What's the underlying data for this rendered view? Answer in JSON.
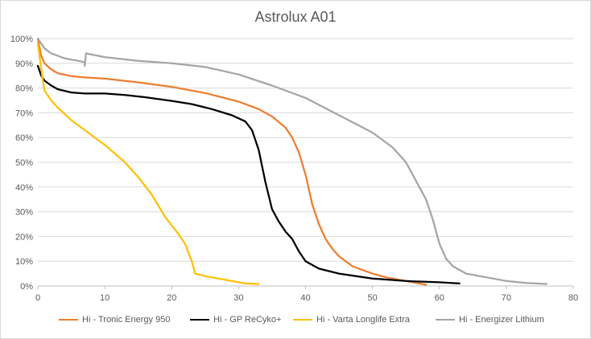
{
  "chart_data": {
    "type": "line",
    "title": "Astrolux A01",
    "xlabel": "",
    "ylabel": "",
    "xlim": [
      0,
      80
    ],
    "ylim": [
      0,
      1
    ],
    "x_ticks": [
      0,
      10,
      20,
      30,
      40,
      50,
      60,
      70,
      80
    ],
    "y_ticks": [
      0,
      0.1,
      0.2,
      0.3,
      0.4,
      0.5,
      0.6,
      0.7,
      0.8,
      0.9,
      1.0
    ],
    "y_tick_labels": [
      "0%",
      "10%",
      "20%",
      "30%",
      "40%",
      "50%",
      "60%",
      "70%",
      "80%",
      "90%",
      "100%"
    ],
    "grid": "horizontal",
    "legend_position": "bottom",
    "series": [
      {
        "name": "Hi - Tronic Energy 950",
        "color": "#ED7D31",
        "points": [
          [
            0,
            1.0
          ],
          [
            0.5,
            0.93
          ],
          [
            1,
            0.9
          ],
          [
            2,
            0.875
          ],
          [
            3,
            0.86
          ],
          [
            5,
            0.848
          ],
          [
            7,
            0.843
          ],
          [
            10,
            0.838
          ],
          [
            15,
            0.823
          ],
          [
            20,
            0.805
          ],
          [
            25,
            0.78
          ],
          [
            30,
            0.745
          ],
          [
            33,
            0.715
          ],
          [
            35,
            0.685
          ],
          [
            37,
            0.64
          ],
          [
            38,
            0.6
          ],
          [
            39,
            0.54
          ],
          [
            40,
            0.45
          ],
          [
            41,
            0.33
          ],
          [
            42,
            0.25
          ],
          [
            43,
            0.19
          ],
          [
            44,
            0.15
          ],
          [
            45,
            0.12
          ],
          [
            47,
            0.08
          ],
          [
            50,
            0.05
          ],
          [
            52,
            0.035
          ],
          [
            55,
            0.02
          ],
          [
            57,
            0.01
          ],
          [
            58,
            0.005
          ]
        ]
      },
      {
        "name": "Hi - GP ReCyko+",
        "color": "#000000",
        "points": [
          [
            0,
            0.89
          ],
          [
            0.5,
            0.85
          ],
          [
            1,
            0.83
          ],
          [
            2,
            0.81
          ],
          [
            3,
            0.795
          ],
          [
            5,
            0.782
          ],
          [
            7,
            0.778
          ],
          [
            10,
            0.778
          ],
          [
            13,
            0.772
          ],
          [
            16,
            0.763
          ],
          [
            20,
            0.748
          ],
          [
            23,
            0.735
          ],
          [
            26,
            0.715
          ],
          [
            29,
            0.69
          ],
          [
            31,
            0.665
          ],
          [
            32,
            0.63
          ],
          [
            33,
            0.55
          ],
          [
            34,
            0.42
          ],
          [
            35,
            0.31
          ],
          [
            36,
            0.26
          ],
          [
            37,
            0.22
          ],
          [
            38,
            0.19
          ],
          [
            39,
            0.14
          ],
          [
            40,
            0.1
          ],
          [
            42,
            0.07
          ],
          [
            45,
            0.05
          ],
          [
            50,
            0.03
          ],
          [
            55,
            0.02
          ],
          [
            60,
            0.015
          ],
          [
            63,
            0.01
          ]
        ]
      },
      {
        "name": "Hi - Varta Longlife Extra",
        "color": "#FFC000",
        "points": [
          [
            0,
            0.98
          ],
          [
            0.3,
            0.92
          ],
          [
            0.7,
            0.84
          ],
          [
            1,
            0.79
          ],
          [
            2,
            0.75
          ],
          [
            3,
            0.72
          ],
          [
            5,
            0.67
          ],
          [
            8,
            0.61
          ],
          [
            10,
            0.57
          ],
          [
            13,
            0.5
          ],
          [
            15,
            0.44
          ],
          [
            17,
            0.37
          ],
          [
            19,
            0.28
          ],
          [
            21,
            0.21
          ],
          [
            22,
            0.17
          ],
          [
            23,
            0.1
          ],
          [
            23.5,
            0.05
          ],
          [
            25,
            0.04
          ],
          [
            27,
            0.03
          ],
          [
            29,
            0.02
          ],
          [
            31,
            0.01
          ],
          [
            33,
            0.008
          ]
        ]
      },
      {
        "name": "Hi - Energizer Lithium",
        "color": "#A5A5A5",
        "points": [
          [
            0,
            1.0
          ],
          [
            1,
            0.96
          ],
          [
            2,
            0.94
          ],
          [
            4,
            0.92
          ],
          [
            6,
            0.91
          ],
          [
            7,
            0.905
          ],
          [
            7,
            0.89
          ],
          [
            7.2,
            0.94
          ],
          [
            10,
            0.925
          ],
          [
            15,
            0.91
          ],
          [
            20,
            0.9
          ],
          [
            25,
            0.885
          ],
          [
            30,
            0.855
          ],
          [
            35,
            0.81
          ],
          [
            40,
            0.76
          ],
          [
            45,
            0.69
          ],
          [
            50,
            0.62
          ],
          [
            53,
            0.56
          ],
          [
            55,
            0.5
          ],
          [
            57,
            0.4
          ],
          [
            58,
            0.35
          ],
          [
            59,
            0.27
          ],
          [
            60,
            0.17
          ],
          [
            61,
            0.11
          ],
          [
            62,
            0.08
          ],
          [
            64,
            0.05
          ],
          [
            67,
            0.035
          ],
          [
            70,
            0.02
          ],
          [
            73,
            0.012
          ],
          [
            76,
            0.008
          ]
        ]
      }
    ]
  }
}
